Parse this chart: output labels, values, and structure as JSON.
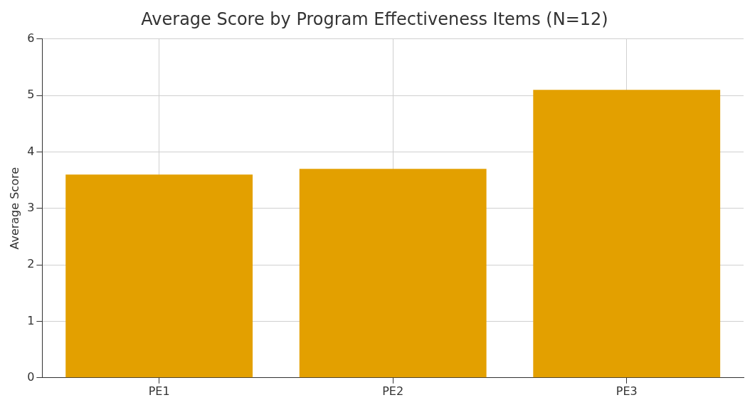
{
  "chart_data": {
    "type": "bar",
    "title": "Average Score by Program Effectiveness Items (N=12)",
    "ylabel": "Average Score",
    "categories": [
      "PE1",
      "PE2",
      "PE3"
    ],
    "values": [
      3.6,
      3.7,
      5.1
    ],
    "color": "#e3a000",
    "ylim": [
      0,
      6
    ],
    "yticks": [
      0,
      1,
      2,
      3,
      4,
      5,
      6
    ],
    "grid": true
  }
}
